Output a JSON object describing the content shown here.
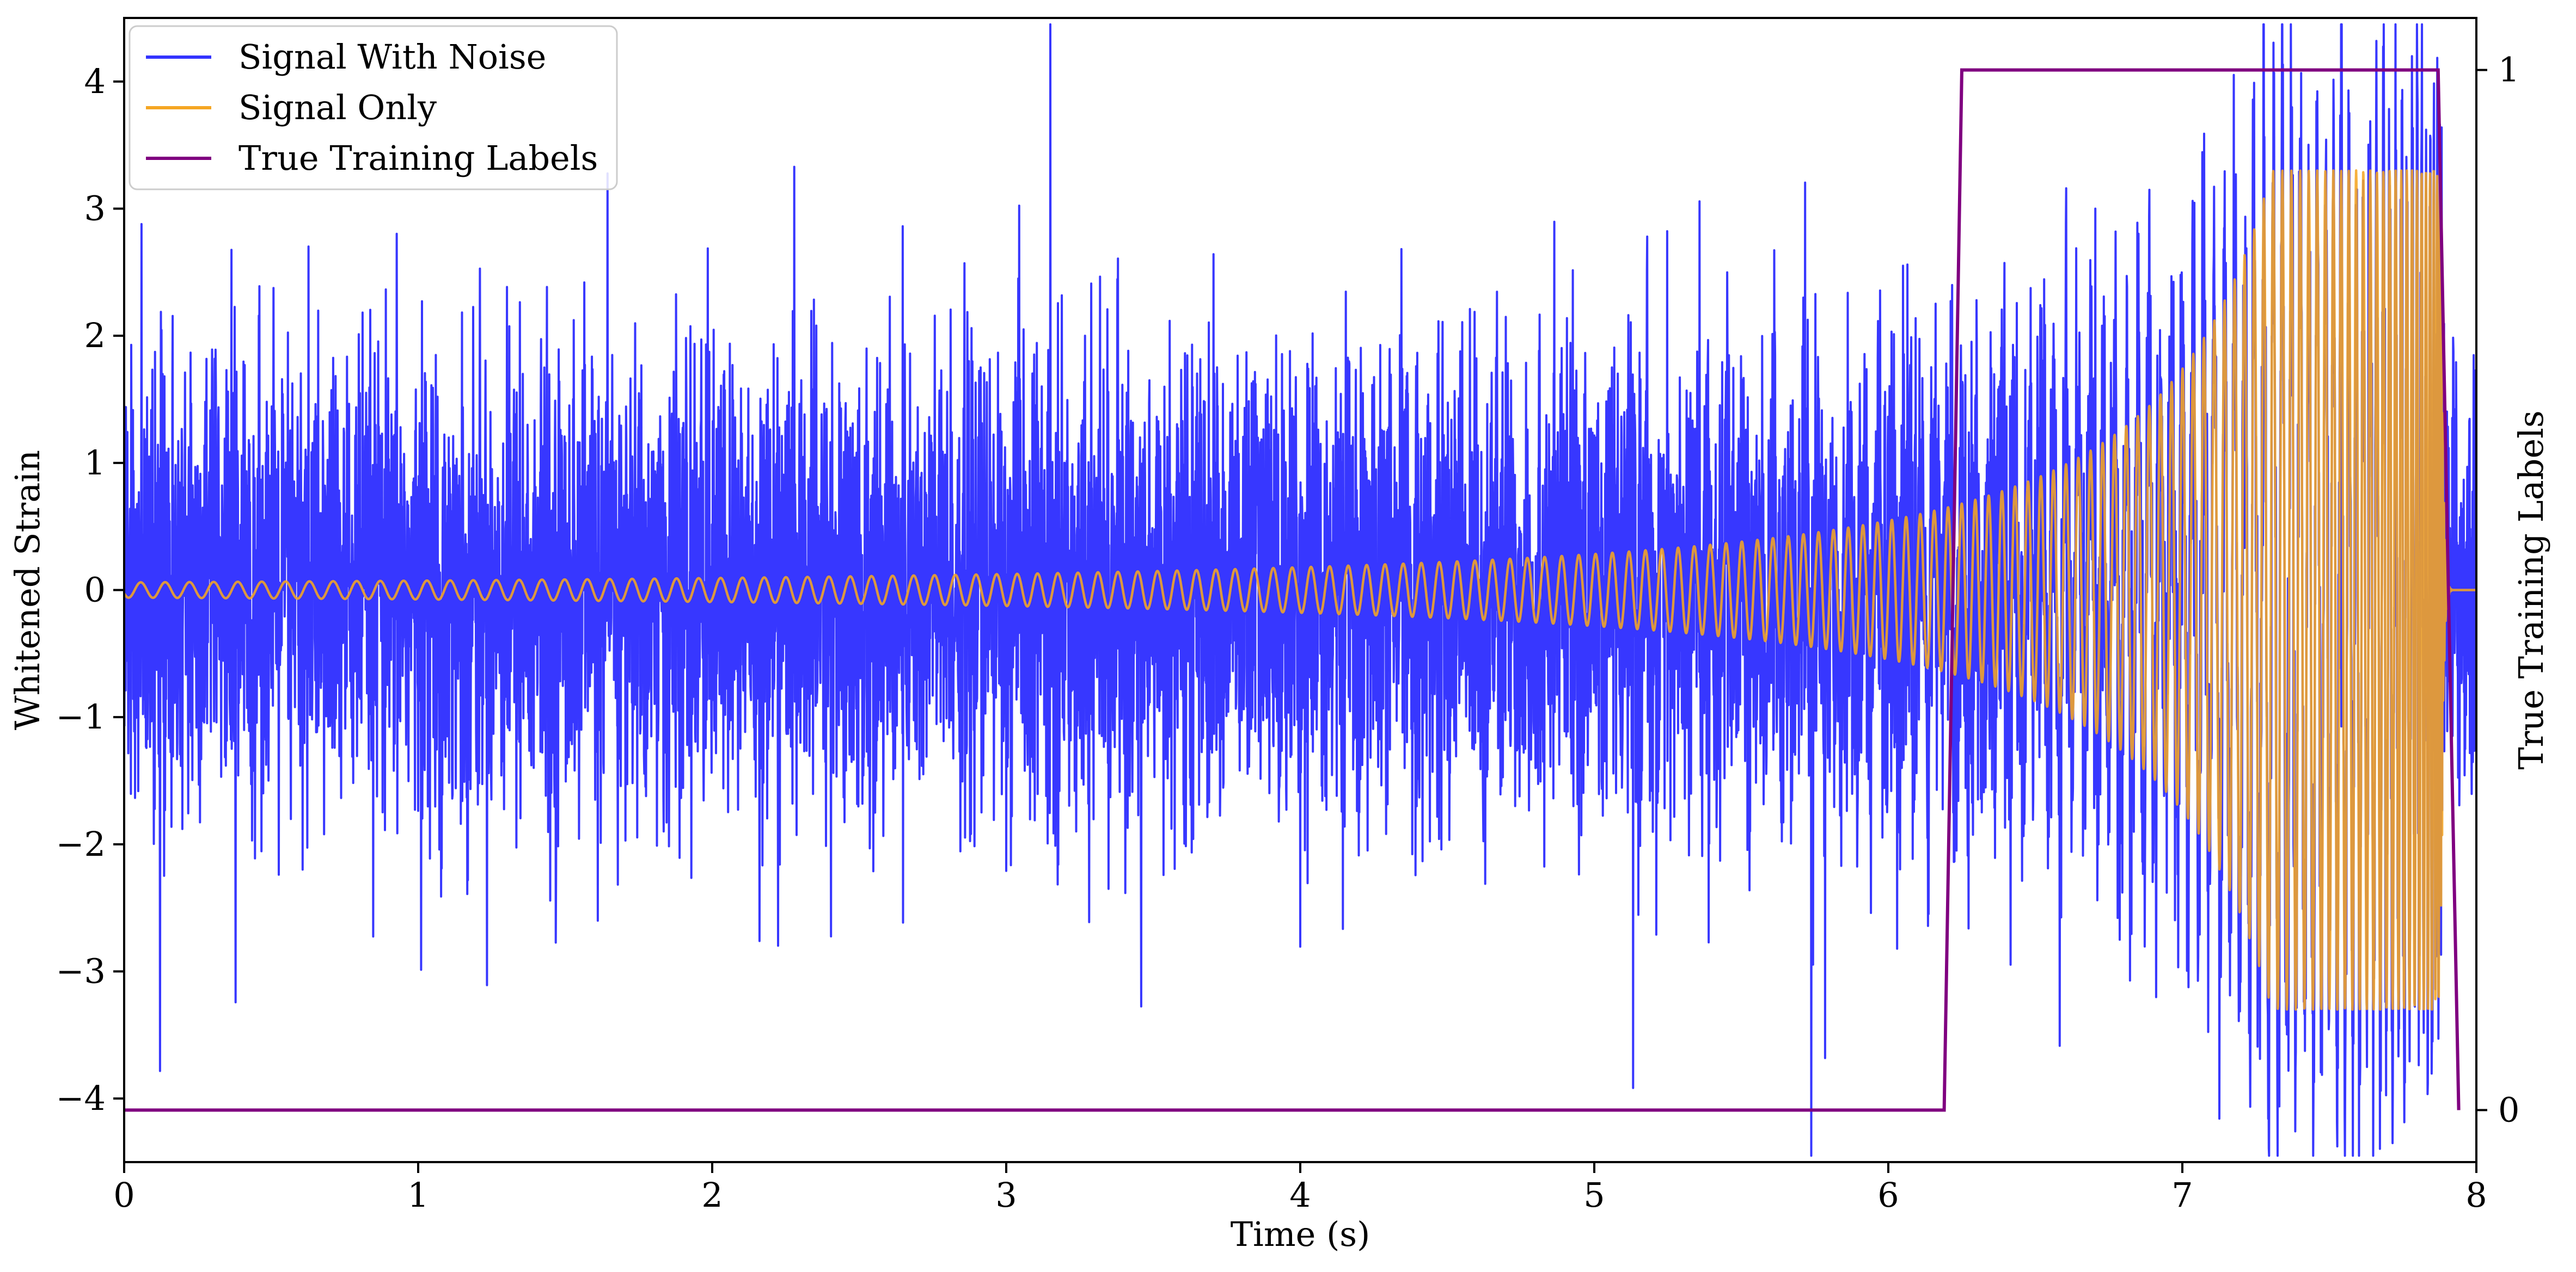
{
  "chart_data": {
    "type": "line",
    "xlabel": "Time (s)",
    "ylabel": "Whitened Strain",
    "y2label": "True Training Labels",
    "xlim": [
      0,
      8
    ],
    "ylim": [
      -4.5,
      4.5
    ],
    "y2lim": [
      -0.05,
      1.05
    ],
    "xticks": [
      0,
      1,
      2,
      3,
      4,
      5,
      6,
      7,
      8
    ],
    "xtick_labels": [
      "0",
      "1",
      "2",
      "3",
      "4",
      "5",
      "6",
      "7",
      "8"
    ],
    "yticks": [
      -4,
      -3,
      -2,
      -1,
      0,
      1,
      2,
      3,
      4
    ],
    "ytick_labels": [
      "−4",
      "−3",
      "−2",
      "−1",
      "0",
      "1",
      "2",
      "3",
      "4"
    ],
    "y2ticks": [
      0,
      1
    ],
    "y2tick_labels": [
      "0",
      "1"
    ],
    "grid": false,
    "legend_position": "top-left",
    "series": [
      {
        "name": "Signal With Noise",
        "axis": "left",
        "color": "#3333ff",
        "kind": "noisy-chirp",
        "noise_sigma": 0.9,
        "duration": 8
      },
      {
        "name": "Signal Only",
        "axis": "left",
        "color": "#f5a623",
        "kind": "chirp",
        "start_frequency_hz": 12,
        "merger_time": 7.88,
        "ringdown_end": 7.92,
        "start_amplitude": 0.06,
        "peak_amplitude": 3.3
      },
      {
        "name": "True Training Labels",
        "axis": "right",
        "color": "#800080",
        "x": [
          0,
          6.19,
          6.25,
          7.87,
          7.94
        ],
        "values": [
          0,
          0,
          1,
          1,
          0
        ]
      }
    ]
  }
}
